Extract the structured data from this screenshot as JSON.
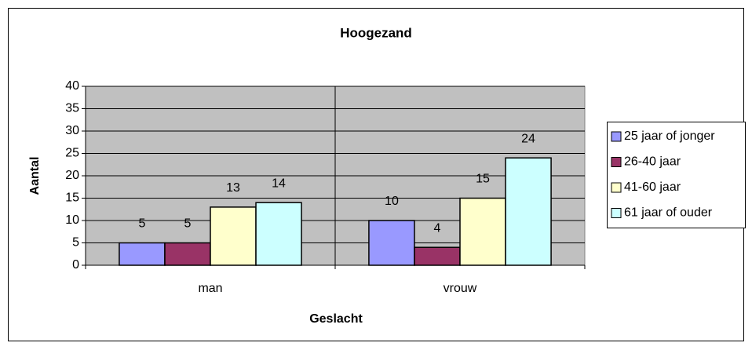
{
  "chart_data": {
    "type": "bar",
    "title": "Hoogezand",
    "x_label": "Geslacht",
    "y_label": "Aantal",
    "categories": [
      "man",
      "vrouw"
    ],
    "series": [
      {
        "name": "25 jaar of jonger",
        "color": "#9999ff",
        "values": [
          5,
          10
        ]
      },
      {
        "name": "26-40 jaar",
        "color": "#993366",
        "values": [
          5,
          4
        ]
      },
      {
        "name": "41-60 jaar",
        "color": "#ffffcc",
        "values": [
          13,
          15
        ]
      },
      {
        "name": "61 jaar of ouder",
        "color": "#ccffff",
        "values": [
          14,
          24
        ]
      }
    ],
    "ylim": [
      0,
      40
    ],
    "yticks": [
      0,
      5,
      10,
      15,
      20,
      25,
      30,
      35,
      40
    ],
    "grid": true,
    "legend": "right"
  }
}
